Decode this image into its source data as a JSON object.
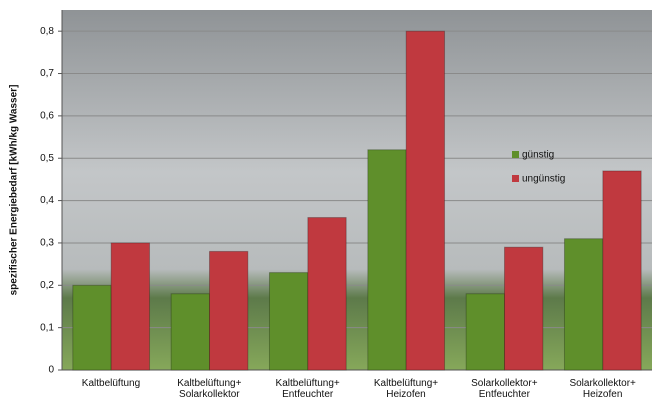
{
  "chart_data": {
    "type": "bar",
    "y_label": "spezifischer Energiebedarf [kWh/kg Wasser]",
    "categories": [
      "Kaltbelüftung",
      "Kaltbelüftung+\nSolarkollektor",
      "Kaltbelüftung+\nEntfeuchter",
      "Kaltbelüftung+\nHeizofen",
      "Solarkollektor+\nEntfeuchter",
      "Solarkollektor+\nHeizofen"
    ],
    "series": [
      {
        "name": "günstig",
        "color": "#5f8f2b",
        "values": [
          0.2,
          0.18,
          0.23,
          0.52,
          0.18,
          0.31
        ]
      },
      {
        "name": "ungünstig",
        "color": "#c0393f",
        "values": [
          0.3,
          0.28,
          0.36,
          0.8,
          0.29,
          0.47
        ]
      }
    ],
    "ylim": [
      0,
      0.85
    ],
    "yticks": [
      0,
      {
        "value": 0.1,
        "label": "0,1"
      },
      {
        "value": 0.2,
        "label": "0,2"
      },
      {
        "value": 0.3,
        "label": "0,3"
      },
      {
        "value": 0.4,
        "label": "0,4"
      },
      {
        "value": 0.5,
        "label": "0,5"
      },
      {
        "value": 0.6,
        "label": "0,6"
      },
      {
        "value": 0.7,
        "label": "0,7"
      },
      {
        "value": 0.8,
        "label": "0,8"
      }
    ],
    "grid": true,
    "legend": "right"
  }
}
